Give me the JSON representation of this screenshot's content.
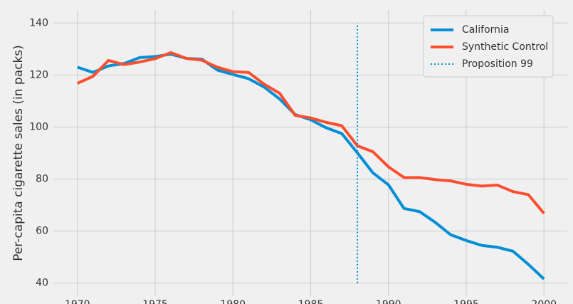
{
  "chart_data": {
    "type": "line",
    "y_label": "Per-capita cigarette sales (in packs)",
    "x": [
      1970,
      1971,
      1972,
      1973,
      1974,
      1975,
      1976,
      1977,
      1978,
      1979,
      1980,
      1981,
      1982,
      1983,
      1984,
      1985,
      1986,
      1987,
      1988,
      1989,
      1990,
      1991,
      1992,
      1993,
      1994,
      1995,
      1996,
      1997,
      1998,
      1999,
      2000
    ],
    "series": [
      {
        "name": "California",
        "color": "#008fd5",
        "values": [
          123,
          121,
          123.5,
          124.4,
          126.7,
          127.1,
          128,
          126.4,
          126.1,
          121.9,
          120.2,
          118.6,
          115.4,
          110.8,
          104.8,
          102.8,
          99.7,
          97.5,
          90.1,
          82.4,
          77.8,
          68.7,
          67.5,
          63.4,
          58.6,
          56.4,
          54.5,
          53.8,
          52.3,
          47.2,
          41.6
        ]
      },
      {
        "name": "Synthetic Control",
        "color": "#fc4f30",
        "values": [
          116.8,
          119.5,
          125.6,
          124.0,
          125.0,
          126.3,
          128.6,
          126.4,
          125.7,
          123.0,
          121.3,
          121.0,
          116.5,
          113.0,
          104.5,
          103.5,
          101.8,
          100.5,
          92.8,
          90.5,
          84.7,
          80.6,
          80.6,
          79.8,
          79.3,
          78.0,
          77.3,
          77.7,
          75.2,
          74.0,
          66.8
        ]
      }
    ],
    "vlines": [
      {
        "name": "Proposition 99",
        "x": 1988,
        "ymin": 40,
        "ymax": 140,
        "color": "#008fd5",
        "style": "dotted"
      }
    ],
    "xlim": [
      1968.5,
      2001.5
    ],
    "ylim": [
      35,
      145
    ],
    "xticks": [
      1970,
      1975,
      1980,
      1985,
      1990,
      1995,
      2000
    ],
    "yticks": [
      40,
      60,
      80,
      100,
      120,
      140
    ],
    "grid": true,
    "legend": "upper right"
  }
}
